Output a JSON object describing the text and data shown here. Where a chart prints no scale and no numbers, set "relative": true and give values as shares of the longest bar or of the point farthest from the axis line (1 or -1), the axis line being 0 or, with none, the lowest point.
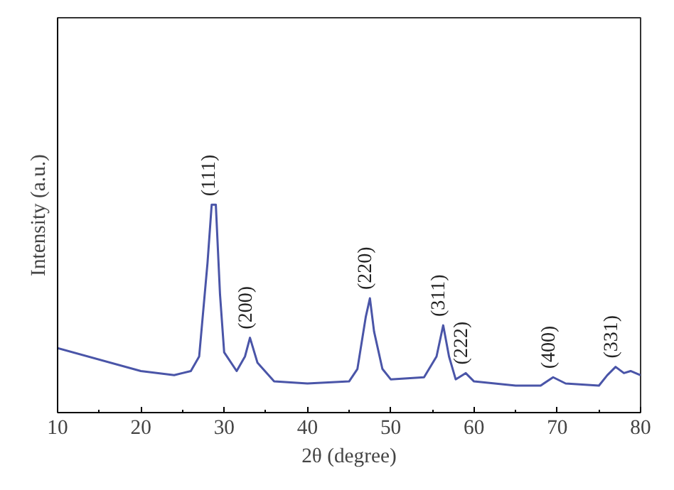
{
  "chart_data": {
    "type": "line",
    "relative": true,
    "xlabel": "2θ (degree)",
    "ylabel": "Intensity (a.u.)",
    "xlim": [
      10,
      80
    ],
    "xticks": [
      10,
      {
        "value": 15,
        "label": null
      },
      20,
      {
        "value": 25,
        "label": null
      },
      30,
      {
        "value": 35,
        "label": null
      },
      40,
      {
        "value": 45,
        "label": null
      },
      50,
      {
        "value": 55,
        "label": null
      },
      60,
      {
        "value": 65,
        "label": null
      },
      70,
      {
        "value": 75,
        "label": null
      },
      80
    ],
    "grid": false,
    "marker": "none",
    "line_style": "solid",
    "series": [
      {
        "color": "#4a55a8",
        "x": [
          10,
          20,
          24,
          26,
          27,
          28,
          28.5,
          29,
          29.5,
          30,
          31.5,
          32.5,
          33.1,
          34,
          36,
          40,
          45,
          46,
          47,
          47.5,
          48,
          49,
          50,
          54,
          55.5,
          56.3,
          57,
          57.8,
          59,
          60,
          65,
          68,
          69.5,
          71,
          75,
          76,
          77,
          78,
          78.8,
          80
        ],
        "values": [
          0.31,
          0.2,
          0.18,
          0.2,
          0.27,
          0.72,
          1.0,
          1.0,
          0.57,
          0.29,
          0.2,
          0.27,
          0.36,
          0.24,
          0.15,
          0.14,
          0.15,
          0.21,
          0.46,
          0.55,
          0.39,
          0.21,
          0.16,
          0.17,
          0.27,
          0.42,
          0.27,
          0.16,
          0.19,
          0.15,
          0.13,
          0.13,
          0.17,
          0.14,
          0.13,
          0.18,
          0.22,
          0.19,
          0.2,
          0.18
        ]
      }
    ],
    "annotations": [
      {
        "text": "(111)",
        "x": 28.7,
        "y": 1.0
      },
      {
        "text": "(200)",
        "x": 33.1,
        "y": 0.36
      },
      {
        "text": "(220)",
        "x": 47.5,
        "y": 0.55
      },
      {
        "text": "(311)",
        "x": 56.3,
        "y": 0.42
      },
      {
        "text": "(222)",
        "x": 59,
        "y": 0.19
      },
      {
        "text": "(400)",
        "x": 69.5,
        "y": 0.17
      },
      {
        "text": "(331)",
        "x": 77,
        "y": 0.22
      }
    ]
  }
}
